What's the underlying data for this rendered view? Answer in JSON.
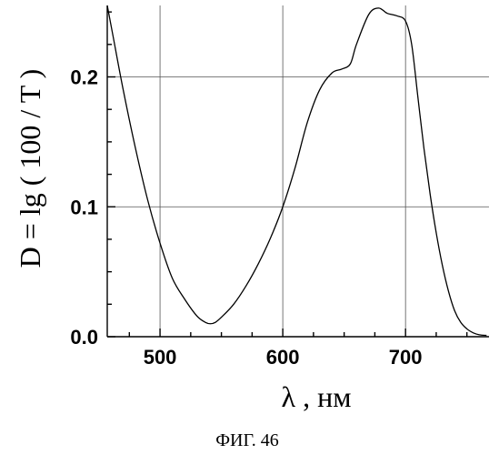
{
  "chart_data": {
    "type": "line",
    "xlabel": "λ , нм",
    "ylabel": "D = lg ( 100 / T )",
    "xlim": [
      457,
      768
    ],
    "ylim": [
      0.0,
      0.255
    ],
    "xticks": [
      500,
      600,
      700
    ],
    "xtick_labels": [
      "500",
      "600",
      "700"
    ],
    "yticks": [
      0.0,
      0.1,
      0.2
    ],
    "ytick_labels": [
      "0.0",
      "0.1",
      "0.2"
    ],
    "grid": true,
    "series": [
      {
        "x": [
          457,
          462,
          470,
          480,
          490,
          500,
          510,
          520,
          530,
          537,
          541,
          545,
          550,
          560,
          570,
          580,
          590,
          600,
          610,
          620,
          630,
          640,
          648,
          655,
          660,
          670,
          678,
          685,
          693,
          700,
          705,
          710,
          715,
          720,
          725,
          730,
          735,
          740,
          745,
          750,
          755,
          760,
          766
        ],
        "y": [
          0.255,
          0.23,
          0.19,
          0.145,
          0.105,
          0.072,
          0.045,
          0.029,
          0.016,
          0.011,
          0.01,
          0.011,
          0.015,
          0.025,
          0.039,
          0.056,
          0.076,
          0.1,
          0.13,
          0.165,
          0.19,
          0.203,
          0.206,
          0.21,
          0.225,
          0.248,
          0.253,
          0.249,
          0.247,
          0.243,
          0.225,
          0.185,
          0.145,
          0.11,
          0.08,
          0.055,
          0.035,
          0.02,
          0.011,
          0.006,
          0.003,
          0.0015,
          0.001
        ]
      }
    ]
  },
  "caption": "ФИГ. 46"
}
